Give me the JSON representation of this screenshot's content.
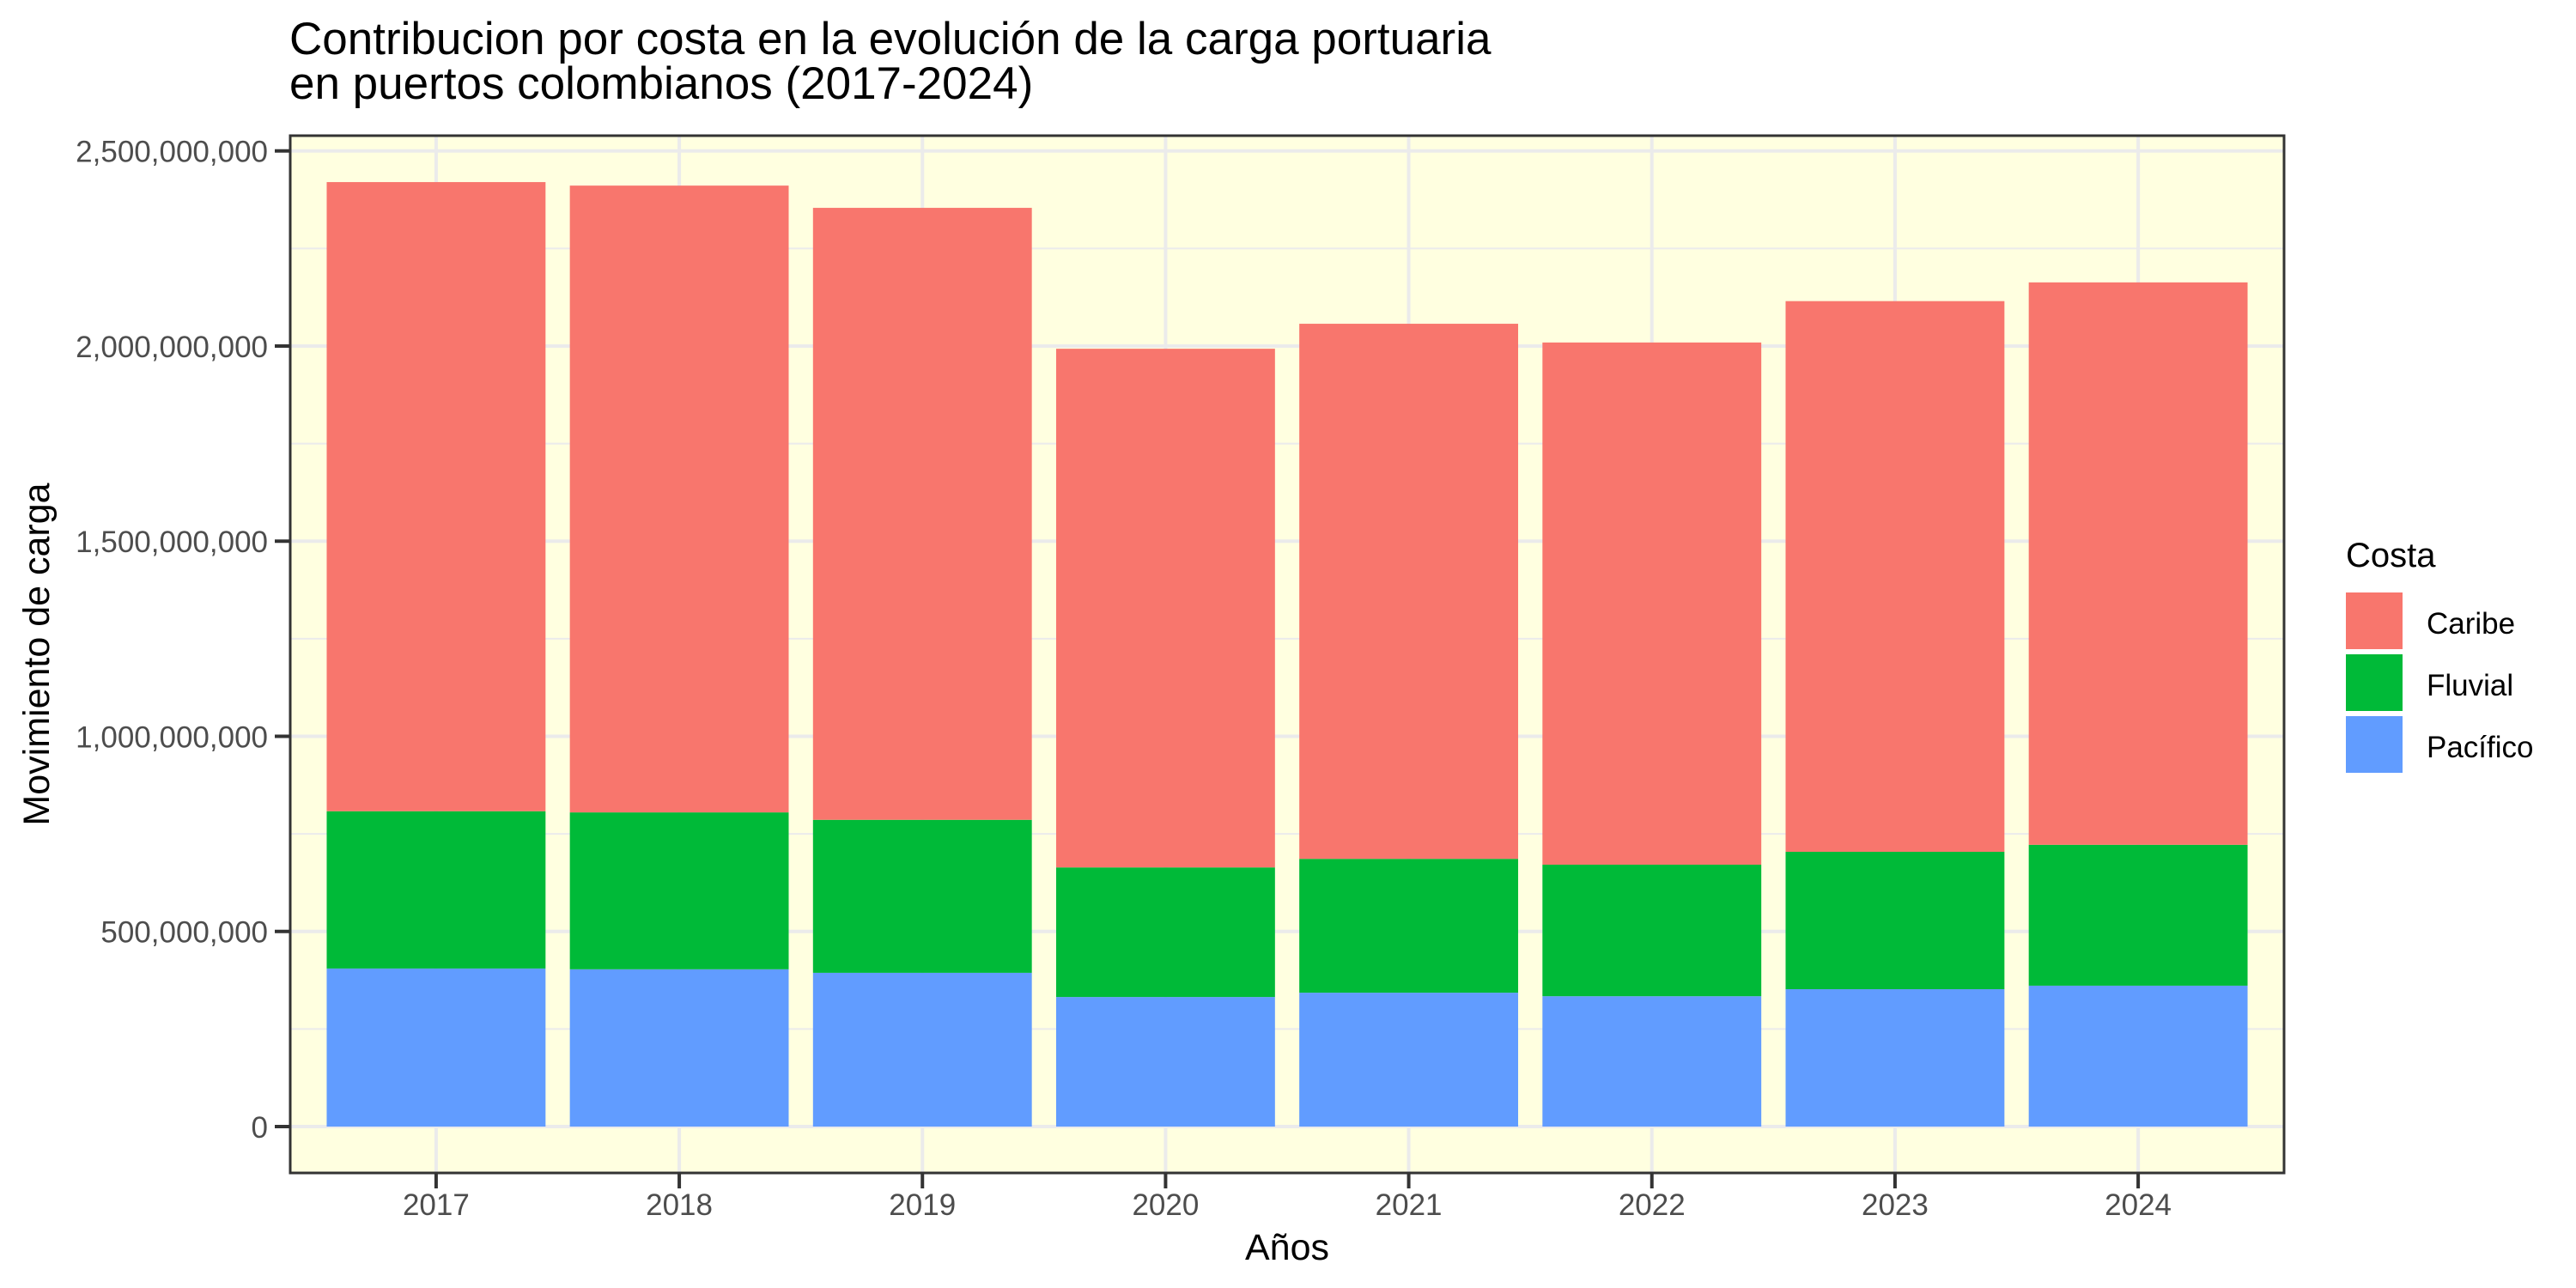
{
  "chart_data": {
    "type": "bar",
    "stacked": true,
    "title_lines": [
      "Contribucion por costa en la evolución de la carga portuaria",
      "en puertos colombianos (2017-2024)"
    ],
    "xlabel": "Años",
    "ylabel": "Movimiento de carga",
    "categories": [
      "2017",
      "2018",
      "2019",
      "2020",
      "2021",
      "2022",
      "2023",
      "2024"
    ],
    "ylim": [
      0,
      2500000000
    ],
    "yticks": [
      0,
      500000000,
      1000000000,
      1500000000,
      2000000000,
      2500000000
    ],
    "ytick_labels": [
      "0",
      "500,000,000",
      "1,000,000,000",
      "1,500,000,000",
      "2,000,000,000",
      "2,500,000,000"
    ],
    "grid": true,
    "legend": {
      "title": "Costa",
      "position": "right"
    },
    "series": [
      {
        "name": "Pacífico",
        "color": "#619CFF",
        "values": [
          405000000,
          403000000,
          394000000,
          332000000,
          343000000,
          334000000,
          352000000,
          361000000
        ]
      },
      {
        "name": "Fluvial",
        "color": "#00BA38",
        "values": [
          403000000,
          402000000,
          392000000,
          332000000,
          343000000,
          337000000,
          352000000,
          361000000
        ]
      },
      {
        "name": "Caribe",
        "color": "#F8766D",
        "values": [
          1612000000,
          1606000000,
          1568000000,
          1329000000,
          1371000000,
          1338000000,
          1411000000,
          1441000000
        ]
      }
    ],
    "legend_order": [
      "Caribe",
      "Fluvial",
      "Pacífico"
    ],
    "panel_background": "#FFFFE0",
    "gridline_color": "#EBEBEB"
  }
}
